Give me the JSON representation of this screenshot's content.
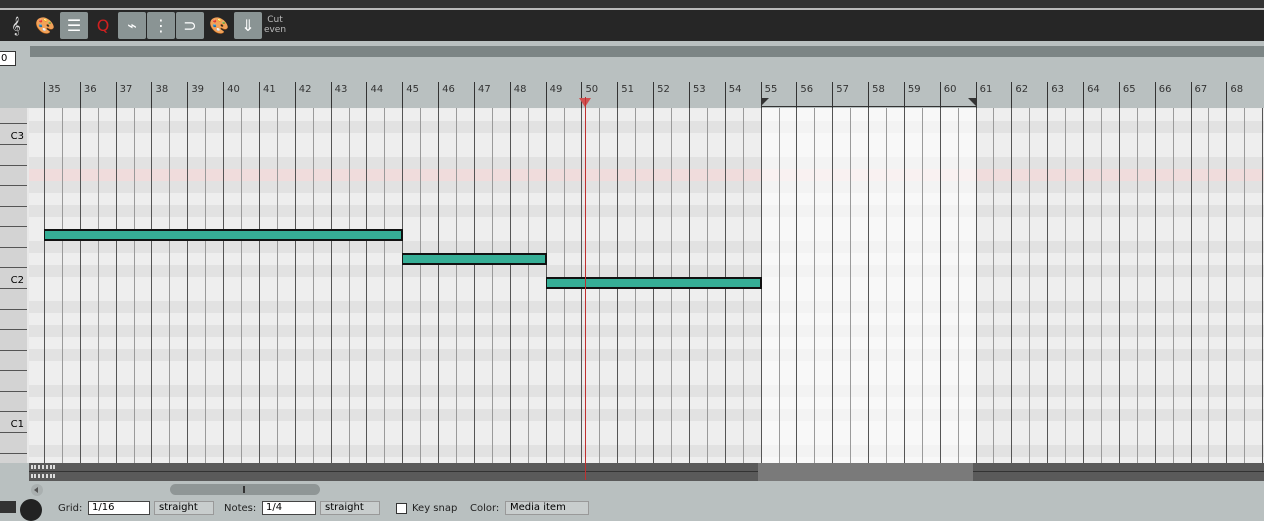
{
  "toolbar": {
    "buttons": [
      {
        "name": "treble-clef-icon",
        "glyph": "𝄞",
        "active": false
      },
      {
        "name": "color-palette-check-icon",
        "glyph": "🎨",
        "active": false
      },
      {
        "name": "list-view-icon",
        "glyph": "☰",
        "active": true
      },
      {
        "name": "quantize-icon",
        "glyph": "Q",
        "active": false
      },
      {
        "name": "cc-envelope-icon",
        "glyph": "⌁",
        "active": true
      },
      {
        "name": "grid-lines-icon",
        "glyph": "⋮⋮⋮",
        "active": true
      },
      {
        "name": "loop-snap-icon",
        "glyph": "⊃",
        "active": true
      },
      {
        "name": "palette-footprint-icon",
        "glyph": "🎨",
        "active": false
      },
      {
        "name": "insert-note-icon",
        "glyph": "⇓",
        "active": true
      }
    ],
    "cut_label_1": "Cut",
    "cut_label_2": "even"
  },
  "ruler": {
    "position_value": "0",
    "measures": [
      35,
      36,
      37,
      38,
      39,
      40,
      41,
      42,
      43,
      44,
      45,
      46,
      47,
      48,
      49,
      50,
      51,
      52,
      53,
      54,
      55,
      56,
      57,
      58,
      59,
      60,
      61,
      62,
      63,
      64,
      65,
      66,
      67,
      68
    ],
    "time_selection": [
      55,
      61
    ]
  },
  "keyboard": {
    "labels": [
      {
        "name": "C3",
        "pitch": 0
      },
      {
        "name": "C2",
        "pitch": -12
      },
      {
        "name": "C1",
        "pitch": -24
      }
    ]
  },
  "notes": [
    {
      "pitch": "E2",
      "start": 35,
      "end": 45
    },
    {
      "pitch": "D2",
      "start": 45,
      "end": 49
    },
    {
      "pitch": "C2",
      "start": 49,
      "end": 55
    }
  ],
  "highlighted_row": "A2",
  "playhead_measure": 50.1,
  "colors": {
    "note": "#36ae96",
    "playhead": "#c03030",
    "highlight_row": "#f0dcdc"
  },
  "bottom": {
    "grid_label": "Grid:",
    "grid_value": "1/16",
    "grid_type": "straight",
    "notes_label": "Notes:",
    "notes_value": "1/4",
    "notes_type": "straight",
    "key_snap_label": "Key snap",
    "color_label": "Color:",
    "color_value": "Media item"
  }
}
